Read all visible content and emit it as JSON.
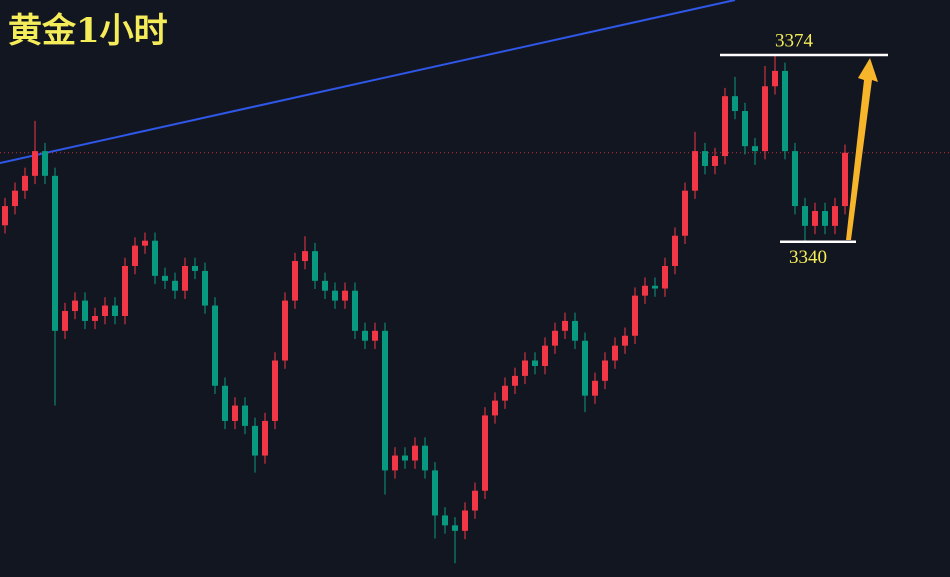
{
  "chart_data": {
    "type": "candlestick",
    "title": "黄金1小时",
    "up_color": "#f23645",
    "down_color": "#089981",
    "ylim": [
      3279,
      3384
    ],
    "levels": [
      3374,
      3340
    ],
    "open": [
      3343.0,
      3346.5,
      3349.3,
      3352.0,
      3356.5,
      3352.0,
      3323.8,
      3327.4,
      3329.3,
      3325.6,
      3326.5,
      3328.4,
      3326.5,
      3335.6,
      3339.3,
      3340.2,
      3333.8,
      3332.9,
      3331.1,
      3335.6,
      3334.7,
      3328.4,
      3313.8,
      3307.4,
      3310.2,
      3306.5,
      3301.1,
      3307.4,
      3318.4,
      3329.3,
      3336.5,
      3338.3,
      3332.9,
      3331.1,
      3329.3,
      3331.1,
      3323.8,
      3322.0,
      3323.8,
      3298.4,
      3301.1,
      3300.2,
      3302.9,
      3298.4,
      3290.2,
      3288.4,
      3287.4,
      3291.1,
      3294.7,
      3308.4,
      3311.1,
      3313.8,
      3315.6,
      3318.4,
      3317.4,
      3321.1,
      3323.8,
      3325.6,
      3322.0,
      3312.0,
      3314.7,
      3318.4,
      3321.1,
      3322.9,
      3330.2,
      3332.0,
      3331.5,
      3335.6,
      3341.1,
      3349.3,
      3356.5,
      3353.8,
      3355.6,
      3366.5,
      3363.8,
      3357.4,
      3356.5,
      3368.3,
      3371.1,
      3356.5,
      3346.5,
      3342.9,
      3345.6,
      3342.9,
      3346.5
    ],
    "high": [
      3348.0,
      3350.8,
      3353.5,
      3362.0,
      3358.0,
      3353.5,
      3328.9,
      3330.8,
      3330.8,
      3328.0,
      3329.9,
      3329.9,
      3337.1,
      3340.8,
      3341.7,
      3341.7,
      3335.3,
      3334.4,
      3337.1,
      3337.1,
      3336.2,
      3329.9,
      3315.3,
      3311.7,
      3311.7,
      3308.0,
      3308.9,
      3319.9,
      3330.8,
      3338.0,
      3341.0,
      3339.8,
      3334.4,
      3332.6,
      3332.6,
      3332.6,
      3325.3,
      3325.3,
      3325.3,
      3302.6,
      3302.6,
      3304.4,
      3304.4,
      3299.9,
      3291.7,
      3289.9,
      3292.6,
      3296.2,
      3309.9,
      3312.6,
      3315.3,
      3317.1,
      3319.9,
      3319.9,
      3322.6,
      3325.3,
      3327.1,
      3327.1,
      3323.5,
      3316.2,
      3319.9,
      3322.6,
      3324.4,
      3331.7,
      3333.5,
      3333.5,
      3337.1,
      3342.6,
      3350.8,
      3360.0,
      3358.0,
      3357.1,
      3368.0,
      3370.0,
      3365.3,
      3358.9,
      3372.0,
      3374.0,
      3372.6,
      3358.0,
      3348.0,
      3347.1,
      3347.1,
      3348.0,
      3357.7
    ],
    "low": [
      3341.5,
      3345.0,
      3347.8,
      3350.5,
      3350.5,
      3310.2,
      3322.3,
      3325.9,
      3324.1,
      3324.1,
      3325.0,
      3325.0,
      3325.0,
      3334.1,
      3337.8,
      3332.3,
      3331.4,
      3329.6,
      3329.6,
      3333.2,
      3326.9,
      3312.3,
      3305.9,
      3305.9,
      3305.0,
      3298.0,
      3299.6,
      3305.9,
      3316.9,
      3327.8,
      3335.0,
      3331.4,
      3329.6,
      3327.8,
      3327.8,
      3322.3,
      3320.5,
      3320.5,
      3294.0,
      3296.9,
      3298.7,
      3298.7,
      3296.9,
      3286.0,
      3286.9,
      3281.5,
      3285.9,
      3289.6,
      3293.2,
      3306.9,
      3309.6,
      3312.3,
      3314.1,
      3315.9,
      3315.9,
      3319.6,
      3322.3,
      3320.5,
      3309.0,
      3310.5,
      3313.2,
      3316.9,
      3319.6,
      3321.4,
      3328.7,
      3330.0,
      3330.0,
      3334.1,
      3339.6,
      3347.8,
      3352.3,
      3352.3,
      3354.1,
      3362.3,
      3355.9,
      3354.0,
      3355.0,
      3366.8,
      3355.0,
      3345.0,
      3340.0,
      3341.4,
      3341.4,
      3341.4,
      3345.0
    ],
    "close": [
      3346.5,
      3349.3,
      3352.0,
      3356.5,
      3352.0,
      3323.8,
      3327.4,
      3329.3,
      3325.6,
      3326.5,
      3328.4,
      3326.5,
      3335.6,
      3339.3,
      3340.2,
      3333.8,
      3332.9,
      3331.1,
      3335.6,
      3334.7,
      3328.4,
      3313.8,
      3307.4,
      3310.2,
      3306.5,
      3301.1,
      3307.4,
      3318.4,
      3329.3,
      3336.5,
      3338.3,
      3332.9,
      3331.1,
      3329.3,
      3331.1,
      3323.8,
      3322.0,
      3323.8,
      3298.4,
      3301.1,
      3300.2,
      3302.9,
      3298.4,
      3290.2,
      3288.4,
      3287.4,
      3291.1,
      3294.7,
      3308.4,
      3311.1,
      3313.8,
      3315.6,
      3318.4,
      3317.4,
      3321.1,
      3323.8,
      3325.6,
      3322.0,
      3312.0,
      3314.7,
      3318.4,
      3321.1,
      3322.9,
      3330.2,
      3332.0,
      3331.5,
      3335.6,
      3341.1,
      3349.3,
      3356.5,
      3353.8,
      3355.6,
      3366.5,
      3363.8,
      3357.4,
      3356.5,
      3368.3,
      3371.1,
      3356.5,
      3346.5,
      3342.9,
      3345.6,
      3342.9,
      3346.5,
      3356.2
    ]
  }
}
